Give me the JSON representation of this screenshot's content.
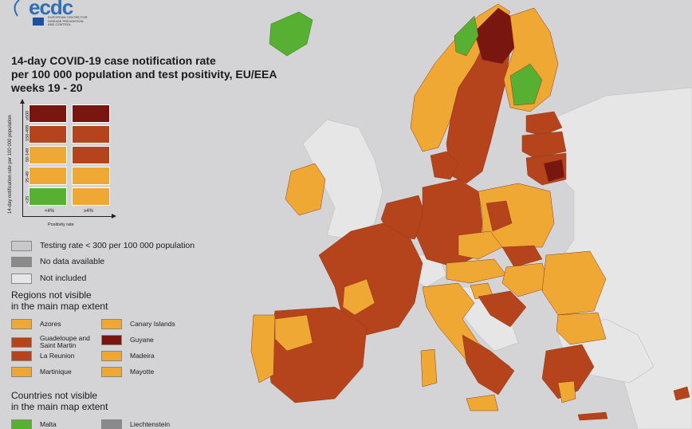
{
  "logo": {
    "text": "ecdc",
    "subtitle": [
      "EUROPEAN CENTRE FOR",
      "DISEASE PREVENTION",
      "AND CONTROL"
    ]
  },
  "title_lines": [
    "14-day COVID-19 case notification rate",
    "per 100 000 population and test positivity, EU/EEA",
    "weeks 19 - 20"
  ],
  "matrix": {
    "y_axis_title": "14-day notification rate per 100 000 population",
    "y_ticks": [
      "≥500",
      "150-499",
      "50-149",
      "25-49",
      "<25"
    ],
    "x_ticks": [
      "<4%",
      "≥4%"
    ],
    "x_axis_title": "Positivity rate",
    "cells": [
      [
        "dark-red",
        "dark-red"
      ],
      [
        "red",
        "red"
      ],
      [
        "orange",
        "red"
      ],
      [
        "orange",
        "orange"
      ],
      [
        "green",
        "orange"
      ]
    ]
  },
  "colors": {
    "dark-red": "#7a1610",
    "red": "#b5431b",
    "orange": "#f0a835",
    "green": "#58b033",
    "grey-light": "#c8c8c8",
    "grey-dark": "#8a8a8a",
    "not-included": "#e6e6e6",
    "background": "#d4d4d6"
  },
  "legend_status": [
    {
      "label": "Testing rate < 300 per 100 000 population",
      "color": "grey-light"
    },
    {
      "label": "No data available",
      "color": "grey-dark"
    },
    {
      "label": "Not included",
      "color": "not-included"
    }
  ],
  "regions_head": [
    "Regions not visible",
    "in the main map extent"
  ],
  "regions_left": [
    {
      "label": "Azores",
      "color": "orange"
    },
    {
      "label": "Guadeloupe and Saint Martin",
      "color": "red"
    },
    {
      "label": "La Reunion",
      "color": "red"
    },
    {
      "label": "Martinique",
      "color": "orange"
    }
  ],
  "regions_right": [
    {
      "label": "Canary Islands",
      "color": "orange"
    },
    {
      "label": "Guyane",
      "color": "dark-red"
    },
    {
      "label": "Madeira",
      "color": "orange"
    },
    {
      "label": "Mayotte",
      "color": "orange"
    }
  ],
  "countries_head": [
    "Countries not visible",
    "in the main map extent"
  ],
  "countries": [
    {
      "label": "Malta",
      "color": "green"
    },
    {
      "label": "Liechtenstein",
      "color": "grey-dark"
    }
  ]
}
